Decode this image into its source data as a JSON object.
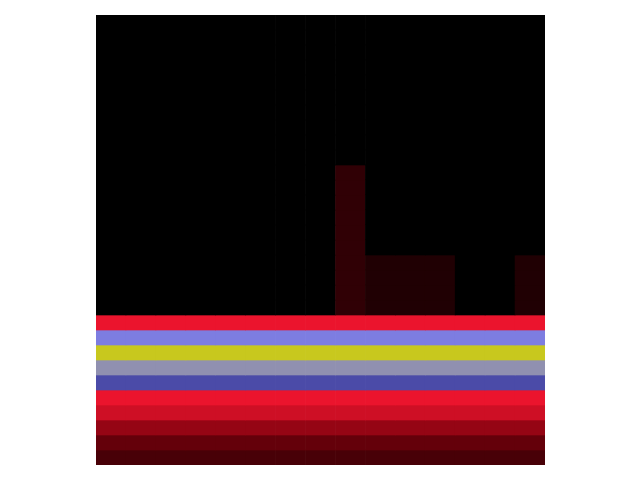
{
  "chart_data": {
    "type": "heatmap",
    "tick_labels": false,
    "grid": false,
    "zlim": [
      0,
      1
    ],
    "cells": [
      [
        0,
        0,
        0,
        0,
        0,
        0,
        0,
        0,
        0,
        0,
        0,
        0,
        0,
        0,
        0
      ],
      [
        0,
        0,
        0,
        0,
        0,
        0,
        0,
        0,
        0,
        0,
        0,
        0,
        0,
        0,
        0
      ],
      [
        0,
        0,
        0,
        0,
        0,
        0,
        0,
        0,
        0,
        0,
        0,
        0,
        0,
        0,
        0
      ],
      [
        0,
        0,
        0,
        0,
        0,
        0,
        0,
        0,
        0,
        0,
        0,
        0,
        0,
        0,
        0
      ],
      [
        0,
        0,
        0,
        0,
        0,
        0,
        0,
        0,
        0,
        0,
        0,
        0,
        0,
        0,
        0
      ],
      [
        0,
        0,
        0,
        0,
        0,
        0,
        0,
        0,
        0,
        0,
        0,
        0,
        0,
        0,
        0
      ],
      [
        0,
        0,
        0,
        0,
        0,
        0,
        0,
        0,
        0,
        0,
        0,
        0,
        0,
        0,
        0
      ],
      [
        0,
        0,
        0,
        0,
        0,
        0,
        0,
        0,
        0,
        0,
        0,
        0,
        0,
        0,
        0
      ],
      [
        0,
        0,
        0,
        0,
        0,
        0,
        0,
        0,
        0,
        0,
        0,
        0,
        0,
        0,
        0
      ],
      [
        0,
        0,
        0,
        0,
        0,
        0,
        0,
        0,
        0,
        0,
        0,
        0,
        0,
        0,
        0
      ],
      [
        0,
        0,
        0,
        0,
        0,
        0,
        0,
        0,
        0.12,
        0,
        0,
        0,
        0,
        0,
        0
      ],
      [
        0,
        0,
        0,
        0,
        0,
        0,
        0,
        0,
        0.12,
        0,
        0,
        0,
        0,
        0,
        0
      ],
      [
        0,
        0,
        0,
        0,
        0,
        0,
        0,
        0,
        0.12,
        0,
        0,
        0,
        0,
        0,
        0
      ],
      [
        0,
        0,
        0,
        0,
        0,
        0,
        0,
        0,
        0.12,
        0,
        0,
        0,
        0,
        0,
        0
      ],
      [
        0,
        0,
        0,
        0,
        0,
        0,
        0,
        0,
        0.12,
        0,
        0,
        0,
        0,
        0,
        0
      ],
      [
        0,
        0,
        0,
        0,
        0,
        0,
        0,
        0,
        0.12,
        0,
        0,
        0,
        0,
        0,
        0
      ],
      [
        0,
        0,
        0,
        0,
        0,
        0,
        0,
        0,
        0.12,
        0.08,
        0.08,
        0.08,
        0,
        0,
        0.08
      ],
      [
        0,
        0,
        0,
        0,
        0,
        0,
        0,
        0,
        0.12,
        0.08,
        0.08,
        0.08,
        0,
        0,
        0.08
      ],
      [
        0,
        0,
        0,
        0,
        0,
        0,
        0,
        0,
        0.12,
        0.08,
        0.08,
        0.08,
        0,
        0,
        0.08
      ],
      [
        0,
        0,
        0,
        0,
        0,
        0,
        0,
        0,
        0.12,
        0.08,
        0.08,
        0.08,
        0,
        0,
        0.08
      ],
      [
        0.5,
        0.5,
        0.5,
        0.5,
        0.5,
        0.5,
        0.5,
        0.5,
        0.5,
        0.5,
        0.5,
        0.5,
        0.5,
        0.5,
        0.5
      ],
      [
        0.8,
        0.8,
        0.8,
        0.8,
        0.8,
        0.8,
        0.8,
        0.8,
        0.8,
        0.8,
        0.8,
        0.8,
        0.8,
        0.8,
        0.8
      ],
      [
        1,
        1,
        1,
        1,
        1,
        1,
        1,
        1,
        1,
        1,
        1,
        1,
        1,
        1,
        1
      ],
      [
        0.85,
        0.85,
        0.85,
        0.85,
        0.85,
        0.85,
        0.85,
        0.85,
        0.85,
        0.85,
        0.85,
        0.85,
        0.85,
        0.85,
        0.85
      ],
      [
        0.7,
        0.7,
        0.7,
        0.7,
        0.7,
        0.7,
        0.7,
        0.7,
        0.7,
        0.7,
        0.7,
        0.7,
        0.7,
        0.7,
        0.7
      ],
      [
        0.5,
        0.5,
        0.5,
        0.5,
        0.5,
        0.5,
        0.5,
        0.5,
        0.5,
        0.5,
        0.5,
        0.5,
        0.5,
        0.5,
        0.5
      ],
      [
        0.45,
        0.45,
        0.45,
        0.45,
        0.45,
        0.45,
        0.45,
        0.45,
        0.45,
        0.45,
        0.45,
        0.45,
        0.45,
        0.45,
        0.45
      ],
      [
        0.35,
        0.35,
        0.35,
        0.35,
        0.35,
        0.35,
        0.35,
        0.35,
        0.35,
        0.35,
        0.35,
        0.35,
        0.35,
        0.35,
        0.35
      ],
      [
        0.25,
        0.25,
        0.25,
        0.25,
        0.25,
        0.25,
        0.25,
        0.25,
        0.25,
        0.25,
        0.25,
        0.25,
        0.25,
        0.25,
        0.25
      ],
      [
        0.18,
        0.18,
        0.18,
        0.18,
        0.18,
        0.18,
        0.18,
        0.18,
        0.18,
        0.18,
        0.18,
        0.18,
        0.18,
        0.18,
        0.18
      ]
    ]
  }
}
